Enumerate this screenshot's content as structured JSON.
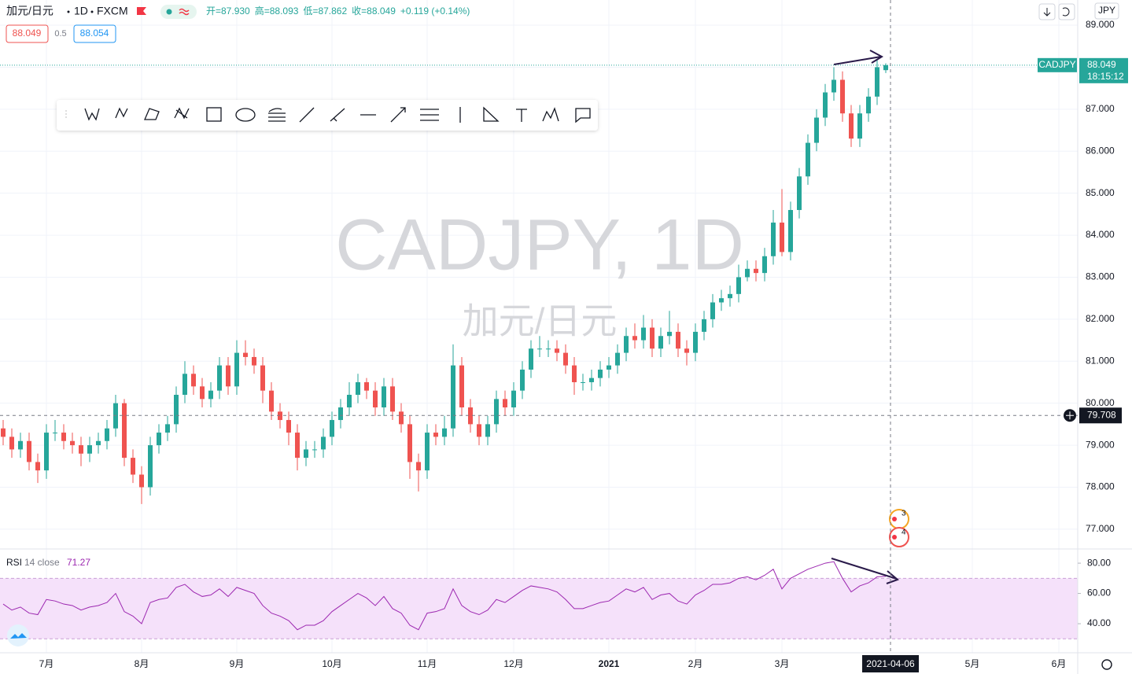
{
  "header": {
    "symbol": "加元/日元",
    "interval": "1D",
    "exchange": "FXCM",
    "ohlc": [
      "开=87.930",
      "高=88.093",
      "低=87.862",
      "收=88.049"
    ],
    "change": "+0.119 (+0.14%)",
    "bid": "88.049",
    "spread": "0.5",
    "ask": "88.054",
    "currency": "JPY",
    "event_badges": [
      "3",
      "4"
    ]
  },
  "chart_data": [
    {
      "type": "candlestick",
      "watermark": "CADJPY, 1D",
      "watermark_subtitle": "加元/日元",
      "symbol": "CADJPY",
      "countdown": "18:15:12",
      "categories": [
        null,
        null,
        null,
        null,
        null,
        "7月",
        null,
        null,
        null,
        null,
        null,
        null,
        null,
        null,
        null,
        null,
        "8月",
        null,
        null,
        null,
        null,
        null,
        null,
        null,
        null,
        null,
        null,
        "9月",
        null,
        null,
        null,
        null,
        null,
        null,
        null,
        null,
        null,
        null,
        "10月",
        null,
        null,
        null,
        null,
        null,
        null,
        null,
        null,
        null,
        null,
        "11月",
        null,
        null,
        null,
        null,
        null,
        null,
        null,
        null,
        null,
        "12月",
        null,
        null,
        null,
        null,
        null,
        null,
        null,
        null,
        null,
        null,
        "2021",
        null,
        null,
        null,
        null,
        null,
        null,
        null,
        null,
        null,
        "2月",
        null,
        null,
        null,
        null,
        null,
        null,
        null,
        null,
        null,
        "3月",
        null,
        null,
        null,
        null,
        null,
        null,
        null,
        null,
        null,
        null,
        null,
        null,
        null,
        null,
        null,
        null,
        null,
        null,
        null,
        null,
        null,
        "5月",
        null,
        null,
        null,
        null,
        null,
        null,
        null,
        null,
        null,
        "6月"
      ],
      "open": [
        79.4,
        79.2,
        78.9,
        79.1,
        78.6,
        78.4,
        79.3,
        79.3,
        79.1,
        79.0,
        78.8,
        79.0,
        79.1,
        79.4,
        80.0,
        78.7,
        78.3,
        78.0,
        79.0,
        79.3,
        79.5,
        80.2,
        80.7,
        80.4,
        80.1,
        80.3,
        80.9,
        80.4,
        81.2,
        81.1,
        80.9,
        80.3,
        79.8,
        79.6,
        79.3,
        78.7,
        78.9,
        78.9,
        79.2,
        79.6,
        79.9,
        80.2,
        80.5,
        80.3,
        79.9,
        80.4,
        79.8,
        79.5,
        78.6,
        78.4,
        79.3,
        79.2,
        79.4,
        80.9,
        79.9,
        79.5,
        79.2,
        79.5,
        80.1,
        79.9,
        80.3,
        80.8,
        81.3,
        81.3,
        81.3,
        81.2,
        80.9,
        80.5,
        80.5,
        80.6,
        80.8,
        80.9,
        81.2,
        81.6,
        81.5,
        81.8,
        81.3,
        81.6,
        81.7,
        81.3,
        81.2,
        81.7,
        82.0,
        82.4,
        82.5,
        82.6,
        83.0,
        83.2,
        83.1,
        83.5,
        84.3,
        83.6,
        84.6,
        85.4,
        86.2,
        86.8,
        87.4,
        87.7,
        86.9,
        86.3,
        86.9,
        87.3,
        87.93,
        null,
        null,
        null,
        null,
        null,
        null,
        null,
        null,
        null,
        null,
        null,
        null,
        null,
        null,
        null,
        null,
        null,
        null,
        null,
        null
      ],
      "high": [
        79.6,
        79.4,
        79.3,
        79.3,
        78.8,
        79.5,
        79.6,
        79.5,
        79.3,
        79.2,
        79.2,
        79.3,
        79.6,
        80.2,
        80.1,
        78.9,
        78.5,
        79.2,
        79.5,
        79.7,
        80.4,
        81.0,
        80.9,
        80.6,
        80.5,
        81.1,
        81.1,
        81.5,
        81.5,
        81.3,
        81.1,
        80.5,
        80.0,
        79.8,
        79.5,
        79.1,
        79.1,
        79.4,
        79.8,
        80.1,
        80.5,
        80.7,
        80.6,
        80.5,
        80.6,
        80.6,
        80.0,
        79.7,
        78.8,
        79.5,
        79.5,
        79.7,
        81.4,
        81.1,
        80.1,
        79.7,
        79.7,
        80.3,
        80.3,
        80.5,
        81.0,
        81.5,
        81.6,
        81.5,
        81.5,
        81.4,
        81.1,
        80.7,
        80.8,
        81.0,
        81.1,
        81.4,
        81.8,
        81.9,
        82.1,
        82.0,
        81.8,
        82.2,
        81.9,
        81.5,
        81.9,
        82.2,
        82.6,
        82.7,
        82.8,
        83.3,
        83.4,
        83.4,
        83.7,
        84.6,
        85.1,
        84.8,
        85.6,
        86.4,
        87.0,
        87.6,
        88.0,
        87.9,
        87.1,
        87.1,
        87.5,
        88.2,
        88.093,
        null,
        null,
        null,
        null,
        null,
        null,
        null,
        null,
        null,
        null,
        null,
        null,
        null,
        null,
        null,
        null,
        null,
        null,
        null,
        null
      ],
      "low": [
        79.0,
        78.7,
        78.7,
        78.4,
        78.1,
        78.2,
        79.1,
        78.9,
        78.8,
        78.5,
        78.6,
        78.8,
        78.9,
        79.2,
        78.5,
        78.1,
        77.6,
        77.8,
        78.8,
        79.1,
        79.3,
        80.0,
        80.2,
        79.9,
        79.9,
        80.1,
        80.2,
        80.2,
        80.9,
        80.7,
        80.0,
        79.6,
        79.4,
        79.0,
        78.4,
        78.5,
        78.7,
        78.7,
        79.0,
        79.4,
        79.7,
        80.0,
        80.1,
        79.7,
        79.7,
        79.6,
        79.3,
        78.2,
        77.9,
        78.2,
        79.0,
        79.0,
        79.2,
        79.7,
        79.3,
        79.0,
        79.0,
        79.3,
        79.7,
        79.7,
        80.1,
        80.6,
        81.1,
        81.1,
        81.0,
        80.7,
        80.2,
        80.3,
        80.3,
        80.4,
        80.6,
        80.7,
        81.0,
        81.3,
        81.3,
        81.1,
        81.1,
        81.4,
        81.1,
        80.9,
        81.0,
        81.5,
        81.8,
        82.2,
        82.3,
        82.4,
        82.9,
        82.9,
        82.9,
        83.3,
        83.5,
        83.4,
        84.4,
        85.2,
        86.0,
        86.6,
        87.2,
        86.7,
        86.1,
        86.1,
        86.7,
        87.1,
        87.862,
        null,
        null,
        null,
        null,
        null,
        null,
        null,
        null,
        null,
        null,
        null,
        null,
        null,
        null,
        null,
        null,
        null,
        null,
        null,
        null
      ],
      "close": [
        79.2,
        78.9,
        79.1,
        78.6,
        78.4,
        79.3,
        79.3,
        79.1,
        79.0,
        78.8,
        79.0,
        79.1,
        79.4,
        80.0,
        78.7,
        78.3,
        78.0,
        79.0,
        79.3,
        79.5,
        80.2,
        80.7,
        80.4,
        80.1,
        80.3,
        80.9,
        80.4,
        81.2,
        81.1,
        80.9,
        80.3,
        79.8,
        79.6,
        79.3,
        78.7,
        78.9,
        78.9,
        79.2,
        79.6,
        79.9,
        80.2,
        80.5,
        80.3,
        79.9,
        80.4,
        79.8,
        79.5,
        78.6,
        78.4,
        79.3,
        79.2,
        79.4,
        80.9,
        79.9,
        79.5,
        79.2,
        79.5,
        80.1,
        79.9,
        80.3,
        80.8,
        81.3,
        81.3,
        81.3,
        81.2,
        80.9,
        80.5,
        80.5,
        80.6,
        80.8,
        80.9,
        81.2,
        81.6,
        81.5,
        81.8,
        81.3,
        81.6,
        81.7,
        81.3,
        81.2,
        81.7,
        82.0,
        82.4,
        82.5,
        82.6,
        83.0,
        83.2,
        83.1,
        83.5,
        84.3,
        83.6,
        84.6,
        85.4,
        86.2,
        86.8,
        87.4,
        87.7,
        86.9,
        86.3,
        86.9,
        87.3,
        88.0,
        88.049,
        null,
        null,
        null,
        null,
        null,
        null,
        null,
        null,
        null,
        null,
        null,
        null,
        null,
        null,
        null,
        null,
        null,
        null,
        null,
        null
      ],
      "up_color": "#26a69a",
      "down_color": "#ef5350",
      "ylim": [
        76.53,
        89.6
      ],
      "yticks": [
        {
          "value": 77,
          "label": "77.000"
        },
        {
          "value": 78,
          "label": "78.000"
        },
        {
          "value": 79,
          "label": "79.000"
        },
        {
          "value": 80,
          "label": "80.000"
        },
        {
          "value": 81,
          "label": "81.000"
        },
        {
          "value": 82,
          "label": "82.000"
        },
        {
          "value": 83,
          "label": "83.000"
        },
        {
          "value": 84,
          "label": "84.000"
        },
        {
          "value": 85,
          "label": "85.000"
        },
        {
          "value": 86,
          "label": "86.000"
        },
        {
          "value": 87,
          "label": "87.000"
        },
        {
          "value": 88,
          "label": "88.000"
        },
        {
          "value": 89,
          "label": "89.000"
        }
      ],
      "crosshair": {
        "date": "2021-04-06",
        "price": 79.708
      },
      "grid": true
    },
    {
      "type": "line",
      "subtitle": "14 close",
      "series": [
        {
          "name": "RSI",
          "color": "#9c27b0",
          "values": [
            53,
            49,
            51,
            47,
            46,
            56,
            55,
            53,
            52,
            49,
            51,
            52,
            54,
            60,
            48,
            45,
            40,
            54,
            56,
            57,
            64,
            66,
            61,
            58,
            59,
            63,
            58,
            64,
            62,
            60,
            52,
            47,
            45,
            42,
            36,
            39,
            39,
            42,
            48,
            52,
            56,
            60,
            57,
            52,
            58,
            50,
            47,
            39,
            36,
            47,
            48,
            50,
            63,
            52,
            48,
            46,
            49,
            56,
            54,
            58,
            62,
            65,
            64,
            63,
            61,
            56,
            50,
            50,
            52,
            54,
            55,
            59,
            63,
            61,
            64,
            56,
            59,
            60,
            55,
            53,
            59,
            62,
            66,
            66,
            67,
            70,
            71,
            69,
            72,
            76,
            63,
            70,
            73,
            76,
            78,
            80,
            81,
            70,
            61,
            65,
            67,
            71,
            71.27,
            null,
            null,
            null,
            null,
            null,
            null,
            null,
            null,
            null,
            null,
            null,
            null,
            null,
            null,
            null,
            null,
            null,
            null,
            null,
            null
          ]
        }
      ],
      "ylim": [
        20.8,
        89.4
      ],
      "yticks": [
        {
          "value": 40,
          "label": "40.00"
        },
        {
          "value": 60,
          "label": "60.00"
        },
        {
          "value": 80,
          "label": "80.00"
        }
      ],
      "bands": [
        30,
        70
      ],
      "band_color": "#f5e1fa"
    }
  ]
}
